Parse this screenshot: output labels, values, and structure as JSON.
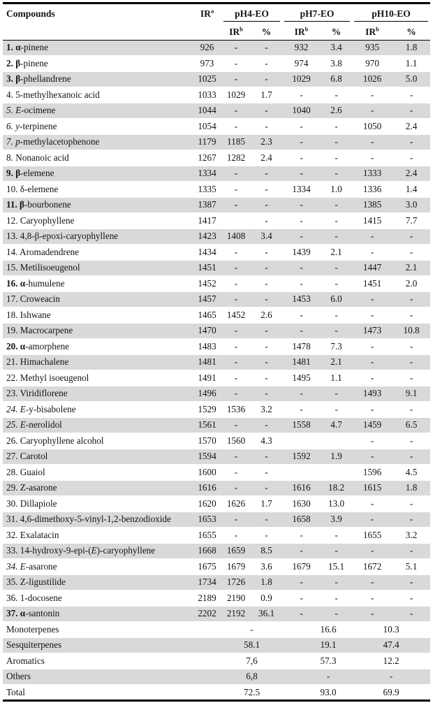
{
  "header": {
    "compounds": "Compounds",
    "ir": {
      "base": "IR",
      "sup": "a"
    },
    "groups": [
      {
        "label": "pH4-EO"
      },
      {
        "label": "pH7-EO"
      },
      {
        "label": "pH10-EO"
      }
    ],
    "sub": {
      "ir_base": "IR",
      "ir_sup": "b",
      "pct": "%"
    }
  },
  "colors": {
    "row_shade": "#d9d9d9",
    "border": "#000000",
    "text": "#131313"
  },
  "rows": [
    {
      "name": [
        [
          "1. α",
          "b"
        ],
        [
          "-pinene",
          ""
        ]
      ],
      "ira": "926",
      "c": [
        "-",
        "-",
        "932",
        "3.4",
        "935",
        "1.8"
      ]
    },
    {
      "name": [
        [
          "2. β",
          "b"
        ],
        [
          "-pinene",
          ""
        ]
      ],
      "ira": "973",
      "c": [
        "-",
        "-",
        "974",
        "3.8",
        "970",
        "1.1"
      ]
    },
    {
      "name": [
        [
          "3. β",
          "b"
        ],
        [
          "-phellandrene",
          ""
        ]
      ],
      "ira": "1025",
      "c": [
        "-",
        "-",
        "1029",
        "6.8",
        "1026",
        "5.0"
      ]
    },
    {
      "name": [
        [
          "4. 5-methylhexanoic acid",
          ""
        ]
      ],
      "ira": "1033",
      "c": [
        "1029",
        "1.7",
        "-",
        "-",
        "-",
        "-"
      ]
    },
    {
      "name": [
        [
          "5. E",
          "i"
        ],
        [
          "-ocimene",
          ""
        ]
      ],
      "ira": "1044",
      "c": [
        "-",
        "-",
        "1040",
        "2.6",
        "-",
        "-"
      ]
    },
    {
      "name": [
        [
          "6. y",
          "i"
        ],
        [
          "-terpinene",
          ""
        ]
      ],
      "ira": "1054",
      "c": [
        "-",
        "-",
        "-",
        "-",
        "1050",
        "2.4"
      ]
    },
    {
      "name": [
        [
          "7. p",
          "i"
        ],
        [
          "-methylacetophenone",
          ""
        ]
      ],
      "ira": "1179",
      "c": [
        "1185",
        "2.3",
        "-",
        "-",
        "-",
        "-"
      ]
    },
    {
      "name": [
        [
          "8. Nonanoic acid",
          ""
        ]
      ],
      "ira": "1267",
      "c": [
        "1282",
        "2.4",
        "-",
        "-",
        "-",
        "-"
      ]
    },
    {
      "name": [
        [
          "9. β",
          "b"
        ],
        [
          "-elemene",
          ""
        ]
      ],
      "ira": "1334",
      "c": [
        "-",
        "-",
        "-",
        "-",
        "1333",
        "2.4"
      ]
    },
    {
      "name": [
        [
          "10. δ-elemene",
          ""
        ]
      ],
      "ira": "1335",
      "c": [
        "-",
        "-",
        "1334",
        "1.0",
        "1336",
        "1.4"
      ]
    },
    {
      "name": [
        [
          "11. β",
          "b"
        ],
        [
          "-bourbonene",
          ""
        ]
      ],
      "ira": "1387",
      "c": [
        "-",
        "-",
        "-",
        "-",
        "1385",
        "3.0"
      ]
    },
    {
      "name": [
        [
          "12. Caryophyllene",
          ""
        ]
      ],
      "ira": "1417",
      "c": [
        "",
        "-",
        "-",
        "-",
        "1415",
        "7.7"
      ]
    },
    {
      "name": [
        [
          "13. 4,8-β-epoxi-caryophyllene",
          ""
        ]
      ],
      "ira": "1423",
      "c": [
        "1408",
        "3.4",
        "-",
        "-",
        "-",
        "-"
      ]
    },
    {
      "name": [
        [
          "14. Aromadendrene",
          ""
        ]
      ],
      "ira": "1434",
      "c": [
        "-",
        "-",
        "1439",
        "2.1",
        "-",
        "-"
      ]
    },
    {
      "name": [
        [
          "15. Metilisoeugenol",
          ""
        ]
      ],
      "ira": "1451",
      "c": [
        "-",
        "-",
        "-",
        "-",
        "1447",
        "2.1"
      ]
    },
    {
      "name": [
        [
          "16. α",
          "b"
        ],
        [
          "-humulene",
          ""
        ]
      ],
      "ira": "1452",
      "c": [
        "-",
        "-",
        "-",
        "-",
        "1451",
        "2.0"
      ]
    },
    {
      "name": [
        [
          "17. Croweacin",
          ""
        ]
      ],
      "ira": "1457",
      "c": [
        "-",
        "-",
        "1453",
        "6.0",
        "-",
        "-"
      ]
    },
    {
      "name": [
        [
          "18. Ishwane",
          ""
        ]
      ],
      "ira": "1465",
      "c": [
        "1452",
        "2.6",
        "-",
        "-",
        "-",
        "-"
      ]
    },
    {
      "name": [
        [
          "19. Macrocarpene",
          ""
        ]
      ],
      "ira": "1470",
      "c": [
        "-",
        "-",
        "-",
        "-",
        "1473",
        "10.8"
      ]
    },
    {
      "name": [
        [
          "20. α",
          "b"
        ],
        [
          "-amorphene",
          ""
        ]
      ],
      "ira": "1483",
      "c": [
        "-",
        "-",
        "1478",
        "7.3",
        "-",
        "-"
      ]
    },
    {
      "name": [
        [
          "21. Himachalene",
          ""
        ]
      ],
      "ira": "1481",
      "c": [
        "-",
        "-",
        "1481",
        "2.1",
        "-",
        "-"
      ]
    },
    {
      "name": [
        [
          "22. Methyl isoeugenol",
          ""
        ]
      ],
      "ira": "1491",
      "c": [
        "-",
        "-",
        "1495",
        "1.1",
        "-",
        "-"
      ]
    },
    {
      "name": [
        [
          "23. Viridiflorene",
          ""
        ]
      ],
      "ira": "1496",
      "c": [
        "-",
        "-",
        "-",
        "-",
        "1493",
        "9.1"
      ]
    },
    {
      "name": [
        [
          "24. E",
          "i"
        ],
        [
          "-y-bisabolene",
          ""
        ]
      ],
      "ira": "1529",
      "c": [
        "1536",
        "3.2",
        "-",
        "-",
        "-",
        "-"
      ]
    },
    {
      "name": [
        [
          "25. E",
          "i"
        ],
        [
          "-nerolidol",
          ""
        ]
      ],
      "ira": "1561",
      "c": [
        "-",
        "-",
        "1558",
        "4.7",
        "1459",
        "6.5"
      ]
    },
    {
      "name": [
        [
          "26. Caryophyllene alcohol",
          ""
        ]
      ],
      "ira": "1570",
      "c": [
        "1560",
        "4.3",
        "",
        "",
        "-",
        "-"
      ]
    },
    {
      "name": [
        [
          "27. Carotol",
          ""
        ]
      ],
      "ira": "1594",
      "c": [
        "-",
        "-",
        "1592",
        "1.9",
        "-",
        "-"
      ]
    },
    {
      "name": [
        [
          "28. Guaiol",
          ""
        ]
      ],
      "ira": "1600",
      "c": [
        "-",
        "-",
        "",
        "",
        "1596",
        "4.5"
      ]
    },
    {
      "name": [
        [
          "29. Z-asarone",
          ""
        ]
      ],
      "ira": "1616",
      "c": [
        "-",
        "-",
        "1616",
        "18.2",
        "1615",
        "1.8"
      ]
    },
    {
      "name": [
        [
          "30. Dillapiole",
          ""
        ]
      ],
      "ira": "1620",
      "c": [
        "1626",
        "1.7",
        "1630",
        "13.0",
        "-",
        "-"
      ]
    },
    {
      "name": [
        [
          "31. 4,6-dimethoxy-5-vinyl-1,2-benzodioxide",
          ""
        ]
      ],
      "ira": "1653",
      "c": [
        "-",
        "-",
        "1658",
        "3.9",
        "-",
        "-"
      ]
    },
    {
      "name": [
        [
          "32. Exalatacin",
          ""
        ]
      ],
      "ira": "1655",
      "c": [
        "-",
        "-",
        "-",
        "-",
        "1655",
        "3.2"
      ]
    },
    {
      "name": [
        [
          "33. 14-hydroxy-9-epi-(",
          ""
        ],
        [
          "E",
          "i"
        ],
        [
          ")-caryophyllene",
          ""
        ]
      ],
      "ira": "1668",
      "c": [
        "1659",
        "8.5",
        "-",
        "-",
        "-",
        "-"
      ]
    },
    {
      "name": [
        [
          "34. E",
          "i"
        ],
        [
          "-asarone",
          ""
        ]
      ],
      "ira": "1675",
      "c": [
        "1679",
        "3.6",
        "1679",
        "15.1",
        "1672",
        "5.1"
      ]
    },
    {
      "name": [
        [
          "35. Z-ligustilide",
          ""
        ]
      ],
      "ira": "1734",
      "c": [
        "1726",
        "1.8",
        "-",
        "-",
        "-",
        "-"
      ]
    },
    {
      "name": [
        [
          "36. 1-docosene",
          ""
        ]
      ],
      "ira": "2189",
      "c": [
        "2190",
        "0.9",
        "-",
        "-",
        "-",
        "-"
      ]
    },
    {
      "name": [
        [
          "37. α",
          "b"
        ],
        [
          "-santonin",
          ""
        ]
      ],
      "ira": "2202",
      "c": [
        "2192",
        "36.1",
        "-",
        "-",
        "-",
        "-"
      ]
    }
  ],
  "summary": [
    {
      "label": "Monoterpenes",
      "v": [
        "-",
        "16.6",
        "10.3"
      ]
    },
    {
      "label": "Sesquiterpenes",
      "v": [
        "58.1",
        "19.1",
        "47.4"
      ]
    },
    {
      "label": "Aromatics",
      "v": [
        "7,6",
        "57.3",
        "12.2"
      ]
    },
    {
      "label": "Others",
      "v": [
        "6,8",
        "-",
        "-"
      ]
    },
    {
      "label": "Total",
      "v": [
        "72.5",
        "93.0",
        "69.9"
      ]
    }
  ]
}
